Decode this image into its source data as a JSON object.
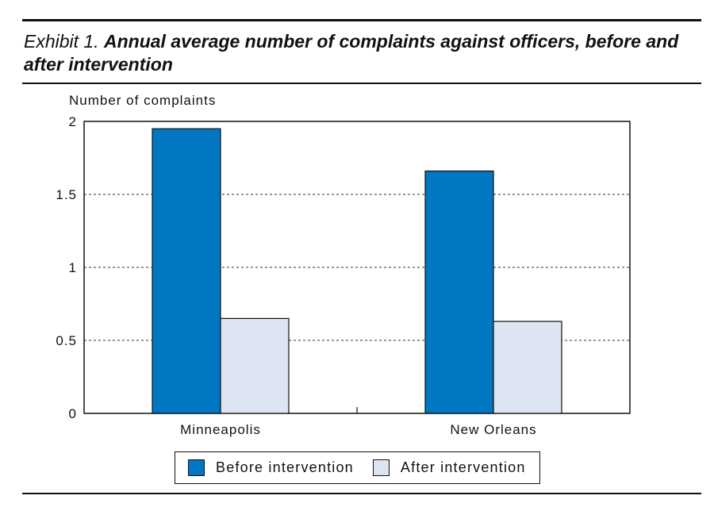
{
  "title": {
    "prefix": "Exhibit 1.",
    "main": "Annual average number of complaints against officers, before and after intervention"
  },
  "colors": {
    "before": "#0077c0",
    "after": "#dde5f3"
  },
  "chart_data": {
    "type": "bar",
    "ylabel": "Number of complaints",
    "xlabel": "",
    "ylim": [
      0,
      2
    ],
    "yticks": [
      0,
      0.5,
      1,
      1.5,
      2
    ],
    "ytick_labels": [
      "0",
      "0.5",
      "1",
      "1.5",
      "2"
    ],
    "categories": [
      "Minneapolis",
      "New Orleans"
    ],
    "series": [
      {
        "name": "Before intervention",
        "values": [
          1.95,
          1.66
        ]
      },
      {
        "name": "After intervention",
        "values": [
          0.65,
          0.63
        ]
      }
    ],
    "grid": "horizontal dashed",
    "legend_placement": "bottom"
  }
}
